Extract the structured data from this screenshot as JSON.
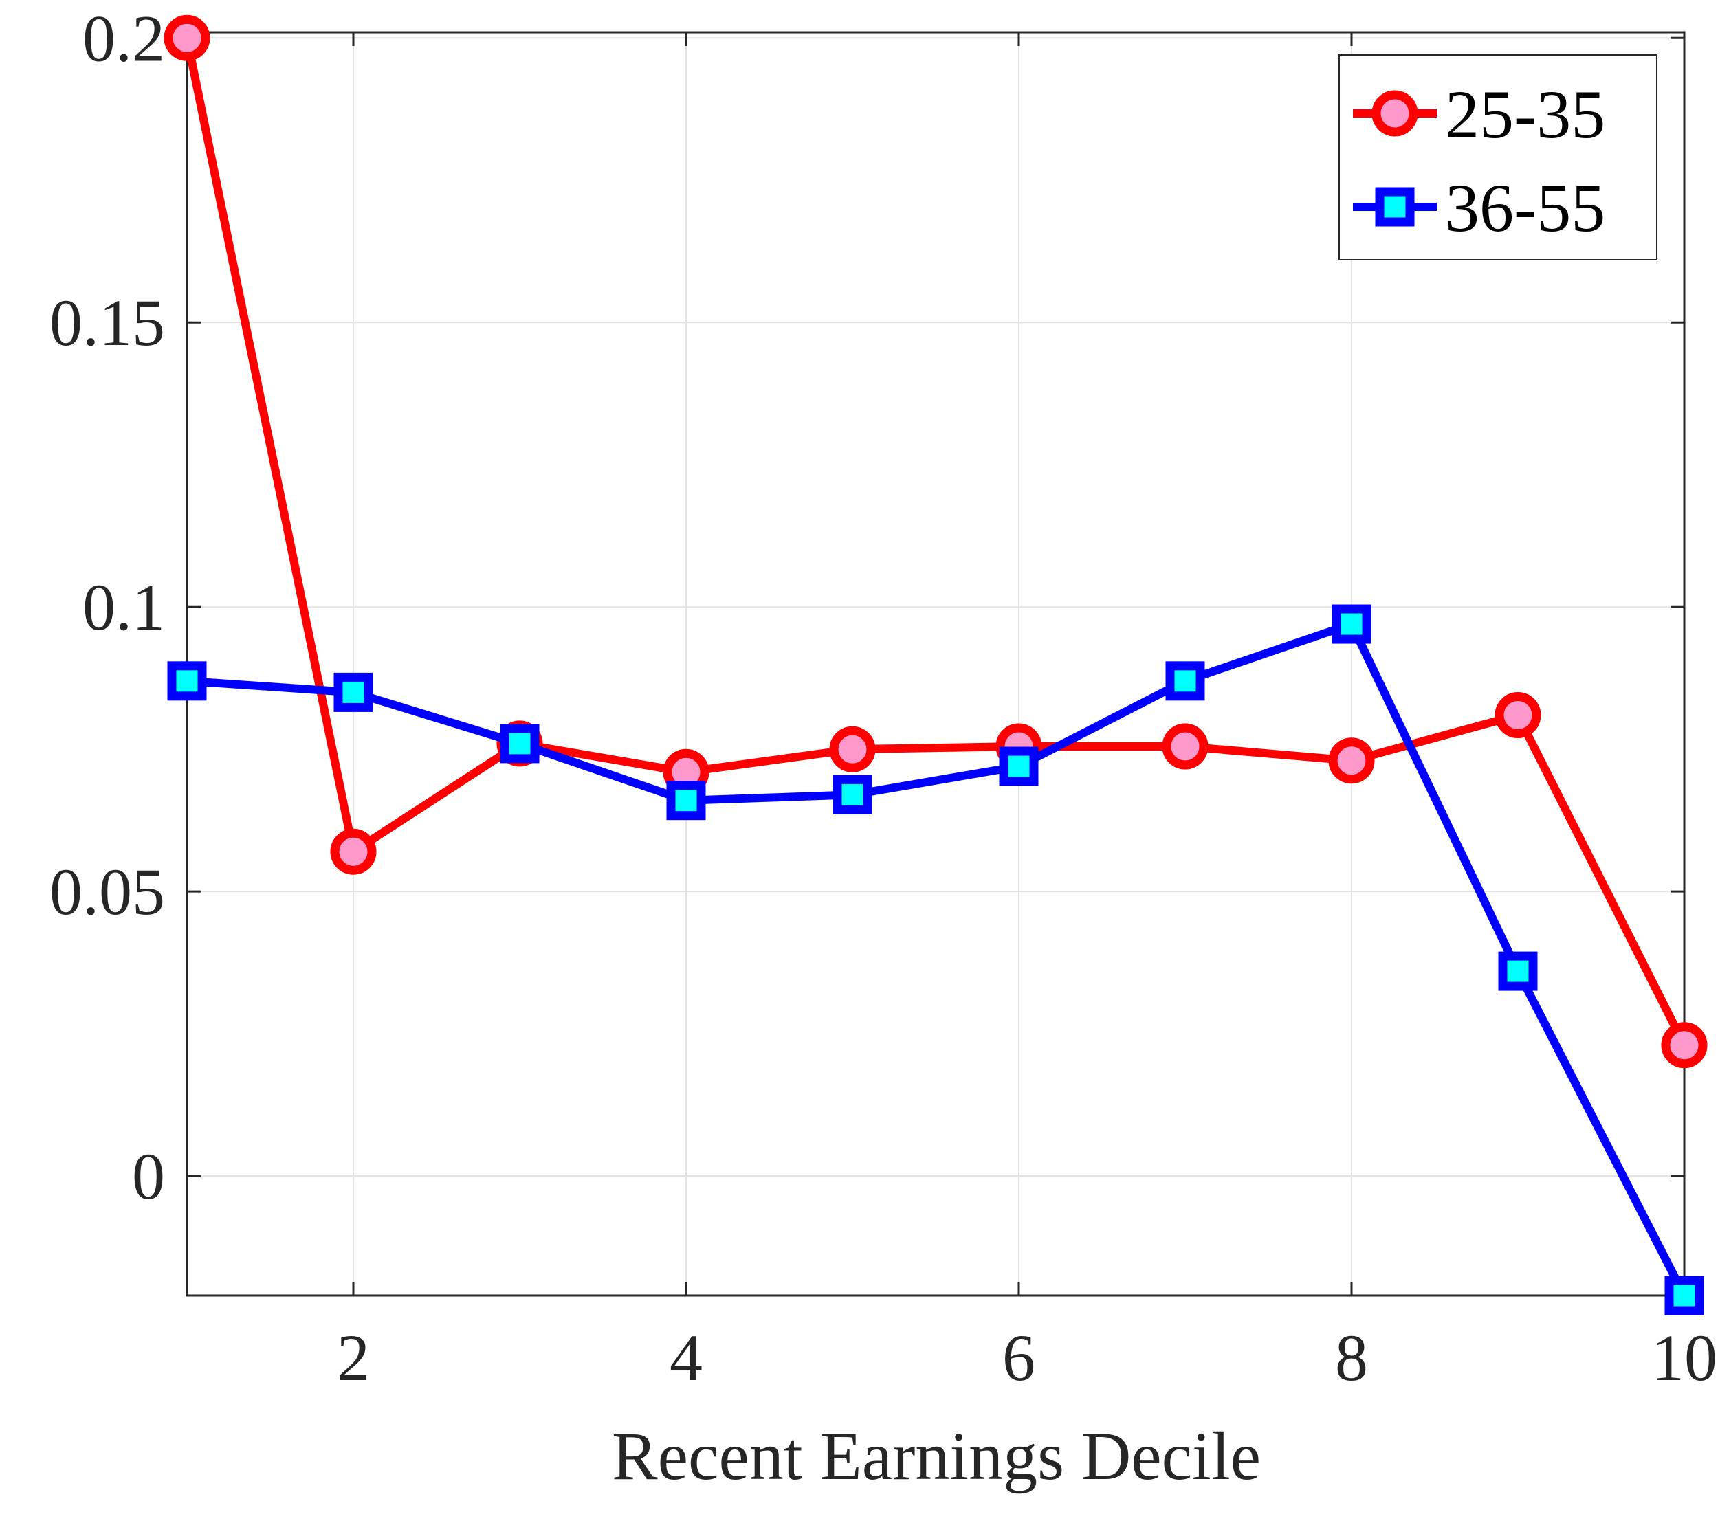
{
  "chart_data": {
    "type": "line",
    "title": "",
    "xlabel": "Recent Earnings Decile",
    "ylabel": "",
    "xlim": [
      1,
      10
    ],
    "ylim": [
      -0.021,
      0.201
    ],
    "xticks": [
      2,
      4,
      6,
      8,
      10
    ],
    "xtick_labels": [
      "2",
      "4",
      "6",
      "8",
      "10"
    ],
    "yticks": [
      0,
      0.05,
      0.1,
      0.15,
      0.2
    ],
    "ytick_labels": [
      "0",
      "0.05",
      "0.1",
      "0.15",
      "0.2"
    ],
    "grid": true,
    "legend_position": "top-right",
    "x": [
      1,
      2,
      3,
      4,
      5,
      6,
      7,
      8,
      9,
      10
    ],
    "series": [
      {
        "name": "25-35",
        "values": [
          0.2,
          0.057,
          0.076,
          0.071,
          0.075,
          0.0755,
          0.0755,
          0.073,
          0.081,
          0.023
        ],
        "line_color": "#ff0000",
        "marker": "circle",
        "marker_fill": "#ff99cc"
      },
      {
        "name": "36-55",
        "values": [
          0.087,
          0.085,
          0.076,
          0.066,
          0.067,
          0.072,
          0.087,
          0.097,
          0.036,
          -0.021
        ],
        "line_color": "#0000ff",
        "marker": "square",
        "marker_fill": "#00ffff"
      }
    ]
  }
}
